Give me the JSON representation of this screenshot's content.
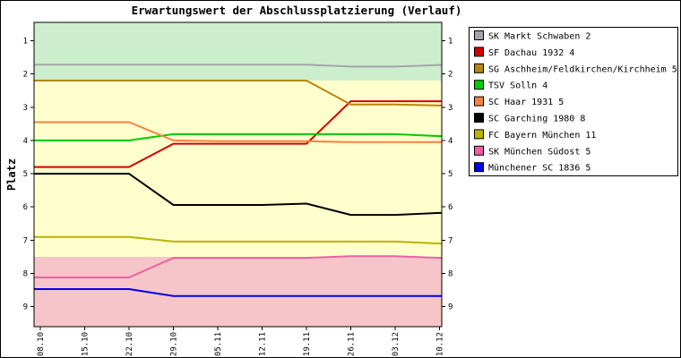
{
  "chart_data": {
    "type": "line",
    "title": "Erwartungswert der Abschlussplatzierung (Verlauf)",
    "ylabel": "Platz",
    "grid": false,
    "legend_position": "top-right",
    "y_axis": {
      "ticks": [
        1,
        2,
        3,
        4,
        5,
        6,
        7,
        8,
        9
      ],
      "range": [
        0.45,
        9.6
      ],
      "orientation": "rank 1 at top"
    },
    "x_tick_labels": [
      "08.10",
      "15.10",
      "22.10",
      "29.10",
      "05.11",
      "12.11",
      "19.11",
      "26.11",
      "03.12",
      "10.12"
    ],
    "bands": [
      {
        "zone": "top",
        "from": 0.45,
        "to": 2.2,
        "color": "#cdeecd"
      },
      {
        "zone": "middle",
        "from": 2.2,
        "to": 7.5,
        "color": "#ffffcd"
      },
      {
        "zone": "bottom",
        "from": 7.5,
        "to": 9.6,
        "color": "#f6c5c9"
      }
    ],
    "series": [
      {
        "name": "SK Markt Schwaben 2",
        "color": "#a5a5a9",
        "values": [
          1.72,
          1.72,
          1.72,
          1.72,
          1.72,
          1.72,
          1.72,
          1.78,
          1.78,
          1.73
        ]
      },
      {
        "name": "SF Dachau 1932 4",
        "color": "#d40000",
        "values": [
          4.8,
          4.8,
          4.8,
          4.1,
          4.1,
          4.1,
          4.1,
          2.82,
          2.82,
          2.82
        ]
      },
      {
        "name": "SG Aschheim/Feldkirchen/Kirchheim 5",
        "color": "#b8860b",
        "values": [
          2.2,
          2.2,
          2.2,
          2.2,
          2.2,
          2.2,
          2.2,
          2.92,
          2.92,
          2.95
        ]
      },
      {
        "name": "TSV Solln 4",
        "color": "#00cc00",
        "values": [
          4.0,
          4.0,
          4.0,
          3.81,
          3.81,
          3.81,
          3.81,
          3.81,
          3.81,
          3.87
        ]
      },
      {
        "name": "SC Haar 1931 5",
        "color": "#ff8040",
        "values": [
          3.45,
          3.45,
          3.45,
          4.0,
          4.02,
          4.02,
          4.02,
          4.05,
          4.05,
          4.05
        ]
      },
      {
        "name": "SC Garching 1980 8",
        "color": "#000000",
        "values": [
          5.0,
          5.0,
          5.0,
          5.94,
          5.94,
          5.94,
          5.9,
          6.24,
          6.24,
          6.18
        ]
      },
      {
        "name": "FC Bayern München 11",
        "color": "#b8b400",
        "values": [
          6.9,
          6.9,
          6.9,
          7.04,
          7.04,
          7.04,
          7.04,
          7.04,
          7.04,
          7.1
        ]
      },
      {
        "name": "SK München Südost 5",
        "color": "#ee60a0",
        "values": [
          8.12,
          8.12,
          8.12,
          7.53,
          7.53,
          7.53,
          7.53,
          7.48,
          7.48,
          7.53
        ]
      },
      {
        "name": "Münchener SC 1836 5",
        "color": "#0000ee",
        "values": [
          8.47,
          8.47,
          8.47,
          8.68,
          8.68,
          8.68,
          8.68,
          8.68,
          8.68,
          8.68
        ]
      }
    ]
  }
}
